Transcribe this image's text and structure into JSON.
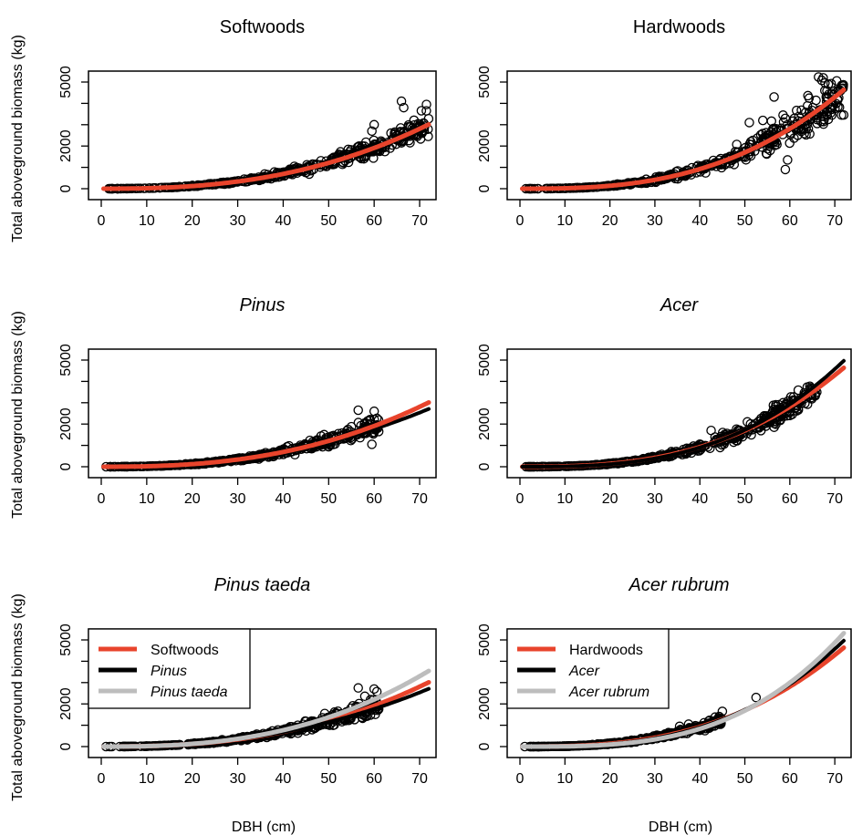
{
  "figure": {
    "ylabel": "Total aboveground biomass (kg)",
    "xlabel": "DBH (cm)"
  },
  "chart_data": [
    {
      "type": "scatter",
      "title": "Softwoods",
      "title_italic": false,
      "xlim": [
        0,
        72
      ],
      "ylim": [
        0,
        5000
      ],
      "xticks": [
        0,
        10,
        20,
        30,
        40,
        50,
        60,
        70
      ],
      "yticks": [
        0,
        2000,
        5000
      ],
      "ytick_marks": [
        0,
        1000,
        2000,
        3000,
        4000,
        5000
      ],
      "points": {
        "xmin": 1,
        "xmax": 72,
        "scale": 0.0685,
        "exp": 2.5,
        "spread": 0.35,
        "outliers": [
          [
            66,
            4100
          ],
          [
            66.5,
            3800
          ],
          [
            71.5,
            3950
          ],
          [
            60,
            3000
          ],
          [
            59.5,
            2700
          ],
          [
            67.5,
            2900
          ],
          [
            70.5,
            2650
          ],
          [
            71,
            2850
          ],
          [
            63.5,
            1900
          ],
          [
            66,
            2150
          ]
        ]
      },
      "series": [
        {
          "name": "",
          "color": "#e8442c",
          "scale": 0.0685,
          "exp": 2.5,
          "xmax": 72,
          "width": 5
        }
      ],
      "legend": null
    },
    {
      "type": "scatter",
      "title": "Hardwoods",
      "title_italic": false,
      "xlim": [
        0,
        72
      ],
      "ylim": [
        0,
        5000
      ],
      "xticks": [
        0,
        10,
        20,
        30,
        40,
        50,
        60,
        70
      ],
      "yticks": [
        0,
        2000,
        5000
      ],
      "ytick_marks": [
        0,
        1000,
        2000,
        3000,
        4000,
        5000
      ],
      "points": {
        "xmin": 1,
        "xmax": 72,
        "scale": 0.0362,
        "exp": 2.75,
        "spread": 0.4,
        "outliers": [
          [
            56.5,
            4300
          ],
          [
            58.5,
            3450
          ],
          [
            59.5,
            1350
          ],
          [
            59,
            900
          ],
          [
            62,
            2850
          ],
          [
            64,
            3300
          ],
          [
            66,
            3500
          ],
          [
            71.5,
            3450
          ],
          [
            51,
            3100
          ],
          [
            54,
            3200
          ]
        ]
      },
      "series": [
        {
          "name": "",
          "color": "#e8442c",
          "scale": 0.0362,
          "exp": 2.75,
          "xmax": 72,
          "width": 5
        }
      ],
      "legend": null
    },
    {
      "type": "scatter",
      "title": "Pinus",
      "title_italic": true,
      "xlim": [
        0,
        72
      ],
      "ylim": [
        0,
        5000
      ],
      "xticks": [
        0,
        10,
        20,
        30,
        40,
        50,
        60,
        70
      ],
      "yticks": [
        0,
        2000,
        5000
      ],
      "ytick_marks": [
        0,
        1000,
        2000,
        3000,
        4000,
        5000
      ],
      "points": {
        "xmin": 1,
        "xmax": 61,
        "scale": 0.0685,
        "exp": 2.5,
        "spread": 0.35,
        "outliers": [
          [
            56.5,
            2650
          ],
          [
            60,
            2600
          ],
          [
            61,
            1650
          ],
          [
            59.5,
            1050
          ]
        ]
      },
      "series": [
        {
          "name": "",
          "color": "#000000",
          "scale": 0.117,
          "exp": 2.35,
          "xmax": 72,
          "width": 4
        },
        {
          "name": "",
          "color": "#e8442c",
          "scale": 0.0685,
          "exp": 2.5,
          "xmax": 72,
          "width": 5
        }
      ],
      "legend": null
    },
    {
      "type": "scatter",
      "title": "Acer",
      "title_italic": true,
      "xlim": [
        0,
        72
      ],
      "ylim": [
        0,
        5000
      ],
      "xticks": [
        0,
        10,
        20,
        30,
        40,
        50,
        60,
        70
      ],
      "yticks": [
        0,
        2000,
        5000
      ],
      "ytick_marks": [
        0,
        1000,
        2000,
        3000,
        4000,
        5000
      ],
      "points": {
        "xmin": 1,
        "xmax": 66,
        "scale": 0.0362,
        "exp": 2.75,
        "spread": 0.3,
        "outliers": [
          [
            58.5,
            3000
          ],
          [
            60.5,
            3100
          ],
          [
            54,
            2100
          ],
          [
            47.5,
            1150
          ],
          [
            44.5,
            900
          ],
          [
            42.5,
            1700
          ],
          [
            66,
            3500
          ]
        ]
      },
      "series": [
        {
          "name": "",
          "color": "#e8442c",
          "scale": 0.0362,
          "exp": 2.75,
          "xmax": 72,
          "width": 5
        },
        {
          "name": "",
          "color": "#000000",
          "scale": 0.0204,
          "exp": 2.9,
          "xmax": 72,
          "width": 4
        }
      ],
      "legend": null
    },
    {
      "type": "scatter",
      "title": "Pinus taeda",
      "title_italic": true,
      "xlim": [
        0,
        72
      ],
      "ylim": [
        0,
        5000
      ],
      "xticks": [
        0,
        10,
        20,
        30,
        40,
        50,
        60,
        70
      ],
      "yticks": [
        0,
        2000,
        5000
      ],
      "ytick_marks": [
        0,
        1000,
        2000,
        3000,
        4000,
        5000
      ],
      "points": {
        "xmin": 1,
        "xmax": 61,
        "scale": 0.0685,
        "exp": 2.5,
        "spread": 0.35,
        "outliers": [
          [
            56.5,
            2750
          ],
          [
            60,
            2700
          ],
          [
            61,
            1750
          ]
        ]
      },
      "series": [
        {
          "name": "Softwoods",
          "color": "#e8442c",
          "scale": 0.0685,
          "exp": 2.5,
          "xmax": 72,
          "width": 5
        },
        {
          "name": "Pinus",
          "color": "#000000",
          "scale": 0.117,
          "exp": 2.35,
          "xmax": 72,
          "width": 4
        },
        {
          "name": "Pinus taeda",
          "color": "#bdbdbd",
          "scale": 0.0526,
          "exp": 2.6,
          "xmax": 72,
          "width": 5
        }
      ],
      "legend": {
        "location": "top-left",
        "items": [
          "Softwoods",
          "Pinus",
          "Pinus taeda"
        ],
        "italic": [
          false,
          true,
          true
        ]
      }
    },
    {
      "type": "scatter",
      "title": "Acer rubrum",
      "title_italic": true,
      "xlim": [
        0,
        72
      ],
      "ylim": [
        0,
        5000
      ],
      "xticks": [
        0,
        10,
        20,
        30,
        40,
        50,
        60,
        70
      ],
      "yticks": [
        0,
        2000,
        5000
      ],
      "ytick_marks": [
        0,
        1000,
        2000,
        3000,
        4000,
        5000
      ],
      "points": {
        "xmin": 1,
        "xmax": 45,
        "scale": 0.0362,
        "exp": 2.75,
        "spread": 0.3,
        "outliers": [
          [
            45,
            1650
          ],
          [
            52.5,
            2300
          ],
          [
            37.5,
            1050
          ],
          [
            35.5,
            950
          ]
        ]
      },
      "series": [
        {
          "name": "Hardwoods",
          "color": "#e8442c",
          "scale": 0.0362,
          "exp": 2.75,
          "xmax": 72,
          "width": 5
        },
        {
          "name": "Acer",
          "color": "#000000",
          "scale": 0.0204,
          "exp": 2.9,
          "xmax": 72,
          "width": 4
        },
        {
          "name": "Acer rubrum",
          "color": "#bdbdbd",
          "scale": 0.0075,
          "exp": 3.15,
          "xmax": 72,
          "width": 5
        }
      ],
      "legend": {
        "location": "top-left",
        "items": [
          "Hardwoods",
          "Acer",
          "Acer rubrum"
        ],
        "italic": [
          false,
          true,
          true
        ]
      }
    }
  ]
}
